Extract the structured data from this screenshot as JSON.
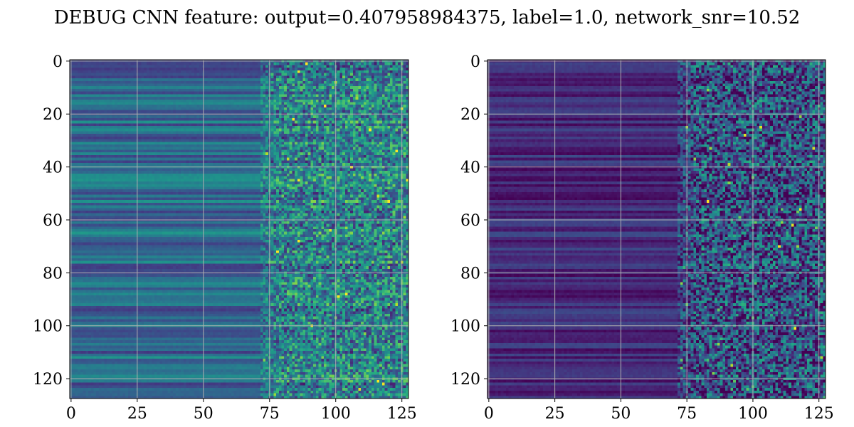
{
  "chart_data": [
    {
      "type": "heatmap",
      "title": "DEBUG CNN feature: output=0.407958984375, label=1.0, network_snr=10.52",
      "rows": 128,
      "cols": 128,
      "x_ticks": [
        0,
        25,
        50,
        75,
        100,
        125
      ],
      "y_ticks": [
        0,
        20,
        40,
        60,
        80,
        100,
        120
      ],
      "xlim": [
        -0.5,
        127.5
      ],
      "ylim": [
        127.5,
        -0.5
      ],
      "grid": true,
      "colormap": "viridis",
      "description_levels": {
        "left_cols_0_70": 0.35,
        "right_cols_75_127": 0.45
      },
      "panel": "left"
    },
    {
      "type": "heatmap",
      "rows": 128,
      "cols": 128,
      "x_ticks": [
        0,
        25,
        50,
        75,
        100,
        125
      ],
      "y_ticks": [
        0,
        20,
        40,
        60,
        80,
        100,
        120
      ],
      "xlim": [
        -0.5,
        127.5
      ],
      "ylim": [
        127.5,
        -0.5
      ],
      "grid": true,
      "colormap": "viridis",
      "description_levels": {
        "left_cols_0_70": 0.12,
        "right_cols_75_127": 0.25
      },
      "panel": "right"
    }
  ]
}
